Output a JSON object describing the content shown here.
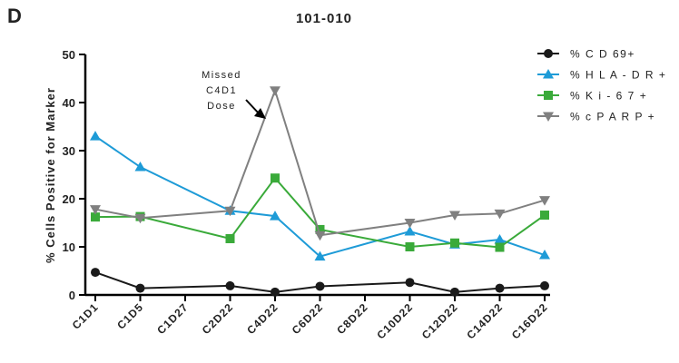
{
  "panel_label": "D",
  "chart_data": {
    "type": "line",
    "title": "101-010",
    "xlabel": "",
    "ylabel": "% Cells Positive for Marker",
    "categories": [
      "C1D1",
      "C1D5",
      "C1D27",
      "C2D22",
      "C4D22",
      "C6D22",
      "C8D22",
      "C10D22",
      "C12D22",
      "C14D22",
      "C16D22"
    ],
    "ylim": [
      0,
      50
    ],
    "yticks": [
      0,
      10,
      20,
      30,
      40,
      50
    ],
    "grid": false,
    "legend_position": "top-right",
    "annotation": {
      "lines": [
        "Missed",
        "C4D1",
        "Dose"
      ],
      "target_category": "C4D22"
    },
    "series": [
      {
        "name": "% C D 69+",
        "color": "#1a1a1a",
        "marker": "circle",
        "points": [
          {
            "x": "C1D1",
            "y": 4.7
          },
          {
            "x": "C1D5",
            "y": 1.4
          },
          {
            "x": "C2D22",
            "y": 1.9
          },
          {
            "x": "C4D22",
            "y": 0.6
          },
          {
            "x": "C6D22",
            "y": 1.8
          },
          {
            "x": "C10D22",
            "y": 2.6
          },
          {
            "x": "C12D22",
            "y": 0.6
          },
          {
            "x": "C14D22",
            "y": 1.4
          },
          {
            "x": "C16D22",
            "y": 1.9
          }
        ]
      },
      {
        "name": "% H L A - D R +",
        "color": "#1e9bd7",
        "marker": "triangle-up",
        "points": [
          {
            "x": "C1D1",
            "y": 33.0
          },
          {
            "x": "C1D5",
            "y": 26.6
          },
          {
            "x": "C2D22",
            "y": 17.5
          },
          {
            "x": "C4D22",
            "y": 16.4
          },
          {
            "x": "C6D22",
            "y": 8.0
          },
          {
            "x": "C10D22",
            "y": 13.2
          },
          {
            "x": "C12D22",
            "y": 10.5
          },
          {
            "x": "C14D22",
            "y": 11.5
          },
          {
            "x": "C16D22",
            "y": 8.3
          }
        ]
      },
      {
        "name": "% K i - 6 7 +",
        "color": "#3aaa3a",
        "marker": "square",
        "points": [
          {
            "x": "C1D1",
            "y": 16.2
          },
          {
            "x": "C1D5",
            "y": 16.3
          },
          {
            "x": "C2D22",
            "y": 11.7
          },
          {
            "x": "C4D22",
            "y": 24.3
          },
          {
            "x": "C6D22",
            "y": 13.6
          },
          {
            "x": "C10D22",
            "y": 10.0
          },
          {
            "x": "C12D22",
            "y": 10.8
          },
          {
            "x": "C14D22",
            "y": 9.9
          },
          {
            "x": "C16D22",
            "y": 16.6
          }
        ]
      },
      {
        "name": "% c P A R P +",
        "color": "#808080",
        "marker": "triangle-down",
        "points": [
          {
            "x": "C1D1",
            "y": 17.8
          },
          {
            "x": "C1D5",
            "y": 16.0
          },
          {
            "x": "C2D22",
            "y": 17.5
          },
          {
            "x": "C4D22",
            "y": 42.5
          },
          {
            "x": "C6D22",
            "y": 12.4
          },
          {
            "x": "C10D22",
            "y": 15.0
          },
          {
            "x": "C12D22",
            "y": 16.6
          },
          {
            "x": "C14D22",
            "y": 16.9
          },
          {
            "x": "C16D22",
            "y": 19.7
          }
        ]
      }
    ]
  }
}
